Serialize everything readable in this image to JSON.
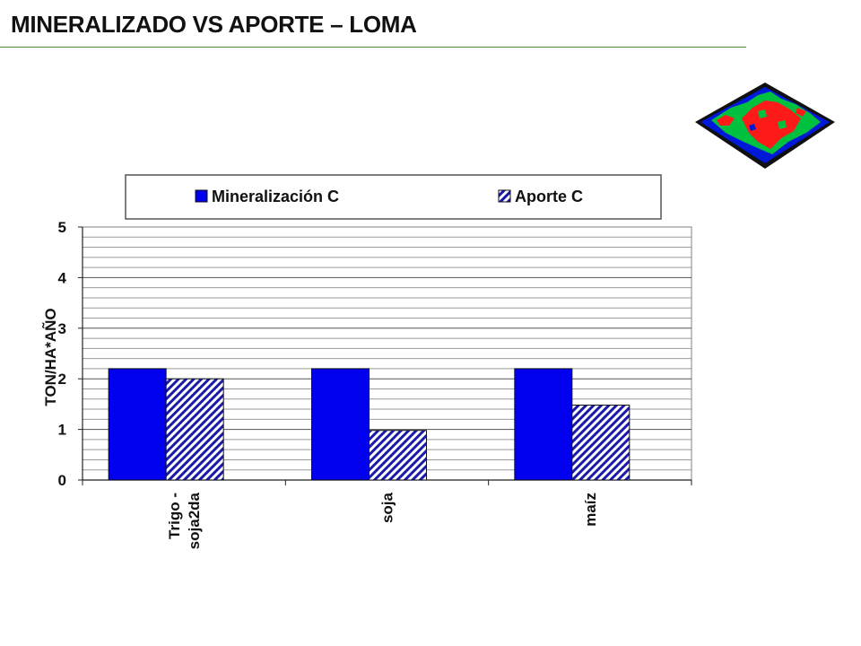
{
  "slide": {
    "title": "MINERALIZADO VS APORTE – LOMA"
  },
  "thumbnail": {
    "icon": "terrain-map-icon",
    "colors": [
      "#ff1a1a",
      "#00c040",
      "#0018d8",
      "#101010"
    ]
  },
  "chart_data": {
    "type": "bar",
    "categories": [
      "Trigo - soja2da",
      "soja",
      "maíz"
    ],
    "category_lines": [
      [
        "Trigo -",
        "soja2da"
      ],
      [
        "soja"
      ],
      [
        "maíz"
      ]
    ],
    "series": [
      {
        "name": "Mineralización C",
        "values": [
          2.2,
          2.2,
          2.2
        ],
        "color": "#0000ee",
        "pattern": "solid"
      },
      {
        "name": "Aporte C",
        "values": [
          2.0,
          0.98,
          1.48
        ],
        "color": "#1a1aa8",
        "pattern": "diagonal-hatch"
      }
    ],
    "ylabel": "TON/HA*AÑO",
    "xlabel": "",
    "ylim": [
      0,
      5
    ],
    "yticks": [
      "0",
      "1",
      "2",
      "3",
      "4",
      "5"
    ],
    "minor_gridlines": true,
    "legend_position": "top"
  }
}
